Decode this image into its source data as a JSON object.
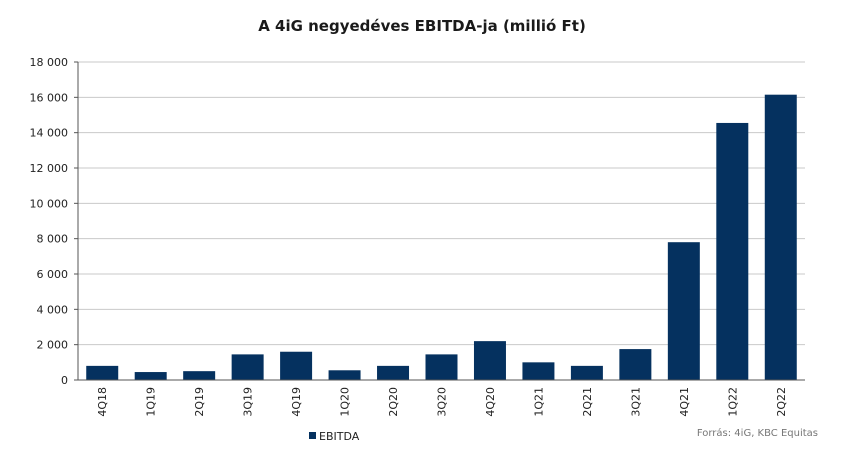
{
  "chart_data": {
    "type": "bar",
    "title": "A 4iG negyedéves EBITDA-ja (millió Ft)",
    "categories": [
      "4Q18",
      "1Q19",
      "2Q19",
      "3Q19",
      "4Q19",
      "1Q20",
      "2Q20",
      "3Q20",
      "4Q20",
      "1Q21",
      "2Q21",
      "3Q21",
      "4Q21",
      "1Q22",
      "2Q22"
    ],
    "series": [
      {
        "name": "EBITDA",
        "values": [
          800,
          450,
          500,
          1450,
          1600,
          550,
          800,
          1450,
          2200,
          1000,
          800,
          1750,
          7800,
          14550,
          16150
        ]
      }
    ],
    "ylim": [
      0,
      18000
    ],
    "yticks": [
      0,
      2000,
      4000,
      6000,
      8000,
      10000,
      12000,
      14000,
      16000,
      18000
    ],
    "ytick_labels": [
      "0",
      "2 000",
      "4 000",
      "6 000",
      "8 000",
      "10 000",
      "12 000",
      "14 000",
      "16 000",
      "18 000"
    ],
    "grid": true,
    "legend_position": "bottom-left",
    "bar_color": "#05315f",
    "source": "Forrás: 4iG, KBC Equitas"
  }
}
